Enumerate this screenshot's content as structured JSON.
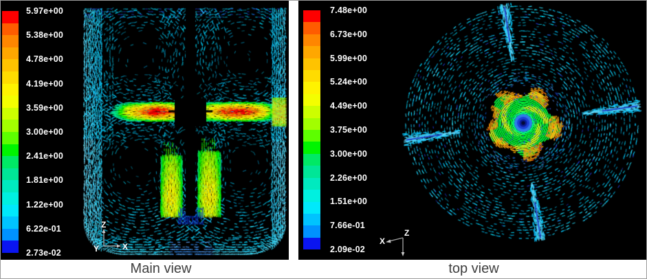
{
  "figure": {
    "background": "#ffffff",
    "panel_background": "#000000"
  },
  "colormap": [
    "#fe0000",
    "#ff5c00",
    "#ff8600",
    "#ffa700",
    "#ffc300",
    "#ffdc00",
    "#fff300",
    "#f4fe00",
    "#cdfe00",
    "#a2fe00",
    "#5dfe00",
    "#00f400",
    "#00e965",
    "#00e697",
    "#00eabf",
    "#00f0e0",
    "#00e9fb",
    "#00c3fe",
    "#0092fe",
    "#0a15f0"
  ],
  "colors": {
    "tick_label": "#ffffff",
    "caption": "#3e3e3e",
    "axis_line": "#9a9a9a",
    "wall_strip_cyan": "#35d8f2",
    "baffle_streak": "#35d8f2",
    "baffle_core_line": "#1d3fd0",
    "jet_core_red": "#fe2000",
    "plume_core_yellow": "#dde800",
    "impeller_green": "#2ee24e",
    "impeller_lobe_orange": "#ffa416",
    "impeller_center_blue": "#1b3fe0",
    "under_shaft_navy": "#0c2fd6"
  },
  "panels": {
    "main": {
      "caption": "Main view",
      "colorbar_labels": [
        "5.97e+00",
        "5.38e+00",
        "4.78e+00",
        "4.19e+00",
        "3.59e+00",
        "3.00e+00",
        "2.41e+00",
        "1.81e+00",
        "1.22e+00",
        "6.22e-01",
        "2.73e-02"
      ],
      "triad": {
        "up": "Z",
        "side": "Y",
        "right": "X"
      }
    },
    "top": {
      "caption": "top view",
      "colorbar_labels": [
        "7.48e+00",
        "6.73e+00",
        "5.99e+00",
        "5.24e+00",
        "4.49e+00",
        "3.75e+00",
        "3.00e+00",
        "2.26e+00",
        "1.51e+00",
        "7.66e-01",
        "2.09e-02"
      ],
      "triad": {
        "left": "X",
        "origin": "Z"
      }
    }
  },
  "chart_data": [
    {
      "type": "heatmap",
      "title": "Main view",
      "subtitle": "Velocity-magnitude vector field, vertical mid-plane of baffled stirred tank",
      "legend_position": "left",
      "legend_labels": [
        "5.97e+00",
        "5.38e+00",
        "4.78e+00",
        "4.19e+00",
        "3.59e+00",
        "3.00e+00",
        "2.41e+00",
        "1.81e+00",
        "1.22e+00",
        "6.22e-01",
        "2.73e-02"
      ],
      "legend_values": [
        5.97,
        5.38,
        4.78,
        4.19,
        3.59,
        3.0,
        2.41,
        1.81,
        1.22,
        0.622,
        0.0273
      ],
      "value_range": [
        0.0273,
        5.97
      ],
      "color_scale": "rainbow, red = max (top), blue = min (bottom), 20 discrete bands",
      "axes_triad": [
        "Z up",
        "Y",
        "X right"
      ],
      "features": [
        "radial impeller jet at mid-height with red/orange core on both sides of shaft",
        "two yellow-green downward plumes below impeller",
        "bright cyan baffle strips along both walls",
        "dark recirculation vortex cores",
        "cyan glow along rounded tank bottom",
        "black central shaft"
      ]
    },
    {
      "type": "heatmap",
      "title": "top view",
      "subtitle": "Velocity-magnitude vector field, horizontal plane of stirred tank (top view)",
      "legend_position": "left",
      "legend_labels": [
        "7.48e+00",
        "6.73e+00",
        "5.99e+00",
        "5.24e+00",
        "4.49e+00",
        "3.75e+00",
        "3.00e+00",
        "2.26e+00",
        "1.51e+00",
        "7.66e-01",
        "2.09e-02"
      ],
      "legend_values": [
        7.48,
        6.73,
        5.99,
        5.24,
        4.49,
        3.75,
        3.0,
        2.26,
        1.51,
        0.766,
        0.0209
      ],
      "value_range": [
        0.0209,
        7.48
      ],
      "color_scale": "rainbow, red = max (top), blue = min (bottom), 20 discrete bands",
      "axes_triad": [
        "X left",
        "Z at origin",
        "arrow down"
      ],
      "features": [
        "circular tank with tangential cyan swirl vectors",
        "four bright cyan baffle streaks at rim",
        "central impeller zone: green spiral with orange lobes and blue vortex core"
      ]
    }
  ]
}
